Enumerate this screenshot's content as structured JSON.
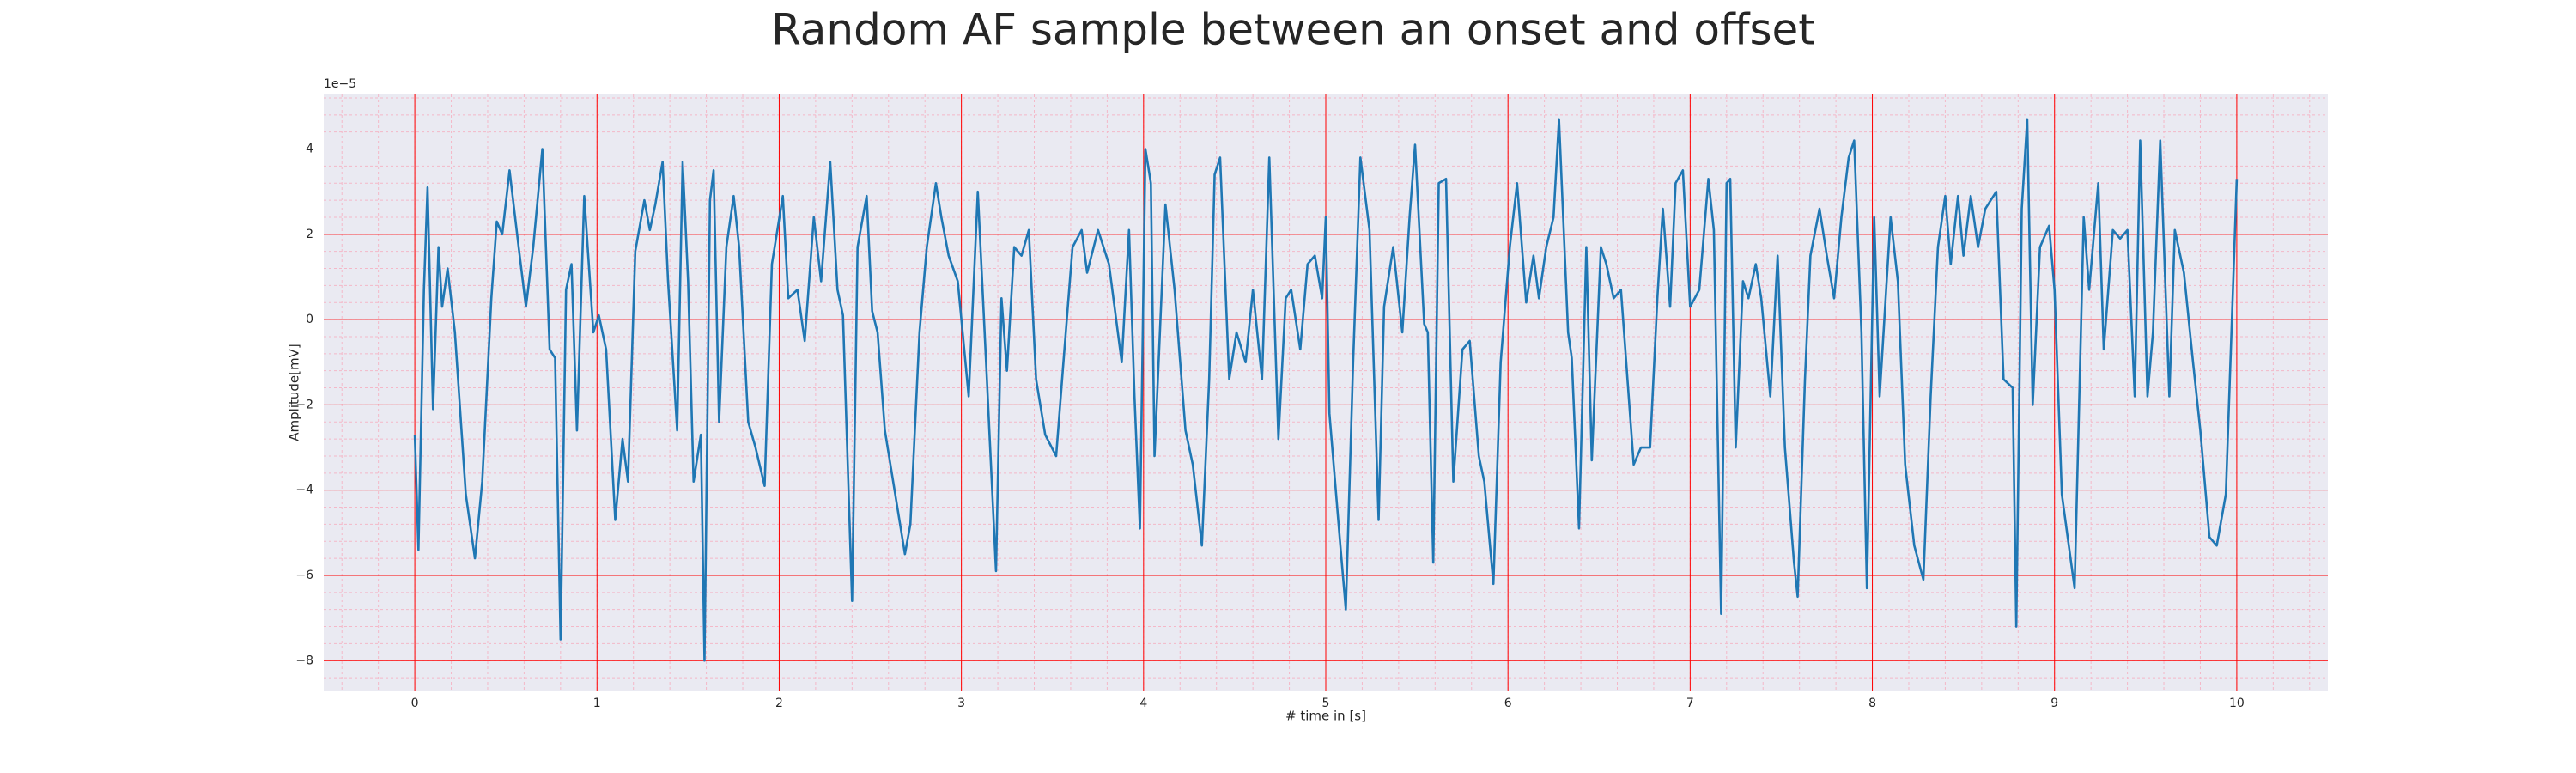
{
  "chart_data": {
    "type": "line",
    "title": "Random AF sample between an onset and offset",
    "xlabel": "# time in [s]",
    "ylabel": "Amplitude[mV]",
    "y_offset_label": "1e−5",
    "color": "#1f77b4",
    "grid": true,
    "grid_color": "#ff0000",
    "minor_grid": true,
    "xlim": [
      -0.5,
      10.5
    ],
    "ylim": [
      -8.7,
      5.28
    ],
    "xticks": [
      0,
      1,
      2,
      3,
      4,
      5,
      6,
      7,
      8,
      9,
      10
    ],
    "yticks": [
      {
        "value": -8,
        "label": "−8"
      },
      {
        "value": -6,
        "label": "−6"
      },
      {
        "value": -4,
        "label": "−4"
      },
      {
        "value": -2,
        "label": "−2"
      },
      0,
      2,
      4
    ],
    "x": [
      0,
      0.02,
      0.05,
      0.07,
      0.1,
      0.13,
      0.15,
      0.18,
      0.22,
      0.28,
      0.33,
      0.37,
      0.42,
      0.45,
      0.48,
      0.52,
      0.57,
      0.61,
      0.65,
      0.7,
      0.74,
      0.77,
      0.8,
      0.83,
      0.86,
      0.89,
      0.93,
      0.98,
      1.01,
      1.05,
      1.1,
      1.14,
      1.17,
      1.21,
      1.26,
      1.29,
      1.32,
      1.36,
      1.39,
      1.44,
      1.47,
      1.5,
      1.53,
      1.57,
      1.59,
      1.62,
      1.64,
      1.67,
      1.71,
      1.75,
      1.78,
      1.83,
      1.87,
      1.92,
      1.96,
      2.02,
      2.05,
      2.1,
      2.14,
      2.19,
      2.23,
      2.28,
      2.32,
      2.35,
      2.4,
      2.43,
      2.48,
      2.51,
      2.54,
      2.58,
      2.69,
      2.72,
      2.77,
      2.81,
      2.86,
      2.89,
      2.93,
      2.98,
      3.04,
      3.09,
      3.14,
      3.19,
      3.22,
      3.25,
      3.29,
      3.33,
      3.37,
      3.41,
      3.46,
      3.52,
      3.56,
      3.61,
      3.66,
      3.69,
      3.75,
      3.81,
      3.88,
      3.92,
      3.95,
      3.98,
      4.01,
      4.04,
      4.06,
      4.12,
      4.17,
      4.23,
      4.27,
      4.32,
      4.36,
      4.39,
      4.42,
      4.47,
      4.51,
      4.56,
      4.6,
      4.65,
      4.69,
      4.74,
      4.78,
      4.81,
      4.86,
      4.9,
      4.94,
      4.98,
      5.0,
      5.02,
      5.08,
      5.11,
      5.15,
      5.19,
      5.24,
      5.29,
      5.32,
      5.37,
      5.42,
      5.46,
      5.49,
      5.54,
      5.56,
      5.59,
      5.62,
      5.66,
      5.7,
      5.75,
      5.79,
      5.84,
      5.87,
      5.92,
      5.96,
      6.01,
      6.05,
      6.1,
      6.14,
      6.17,
      6.21,
      6.25,
      6.28,
      6.33,
      6.35,
      6.39,
      6.43,
      6.46,
      6.51,
      6.54,
      6.58,
      6.62,
      6.69,
      6.73,
      6.78,
      6.82,
      6.85,
      6.89,
      6.92,
      6.96,
      7.0,
      7.05,
      7.1,
      7.13,
      7.17,
      7.2,
      7.22,
      7.25,
      7.29,
      7.32,
      7.36,
      7.39,
      7.44,
      7.48,
      7.52,
      7.57,
      7.59,
      7.63,
      7.66,
      7.71,
      7.75,
      7.79,
      7.83,
      7.87,
      7.9,
      7.94,
      7.97,
      8.01,
      8.04,
      8.1,
      8.14,
      8.18,
      8.23,
      8.28,
      8.32,
      8.36,
      8.4,
      8.43,
      8.47,
      8.5,
      8.54,
      8.58,
      8.62,
      8.68,
      8.72,
      8.77,
      8.79,
      8.82,
      8.85,
      8.88,
      8.92,
      8.97,
      9.0,
      9.04,
      9.11,
      9.16,
      9.19,
      9.24,
      9.27,
      9.32,
      9.36,
      9.4,
      9.44,
      9.47,
      9.51,
      9.54,
      9.58,
      9.63,
      9.66,
      9.71,
      9.76,
      9.8,
      9.85,
      9.89,
      9.94,
      10.0
    ],
    "values": [
      -2.7,
      -5.4,
      0.7,
      3.1,
      -2.1,
      1.7,
      0.3,
      1.2,
      -0.3,
      -4.1,
      -5.6,
      -3.8,
      0.5,
      2.3,
      2.0,
      3.5,
      1.7,
      0.3,
      1.7,
      4.0,
      -0.7,
      -0.9,
      -7.5,
      0.7,
      1.3,
      -2.6,
      2.9,
      -0.3,
      0.1,
      -0.7,
      -4.7,
      -2.8,
      -3.8,
      1.6,
      2.8,
      2.1,
      2.7,
      3.7,
      0.9,
      -2.6,
      3.7,
      0.9,
      -3.8,
      -2.7,
      -8.0,
      2.8,
      3.5,
      -2.4,
      1.7,
      2.9,
      1.7,
      -2.4,
      -3.0,
      -3.9,
      1.3,
      2.9,
      0.5,
      0.7,
      -0.5,
      2.4,
      0.9,
      3.7,
      0.7,
      0.1,
      -6.6,
      1.7,
      2.9,
      0.2,
      -0.3,
      -2.6,
      -5.5,
      -4.8,
      -0.3,
      1.7,
      3.2,
      2.4,
      1.5,
      0.9,
      -1.8,
      3.0,
      -1.4,
      -5.9,
      0.5,
      -1.2,
      1.7,
      1.5,
      2.1,
      -1.4,
      -2.7,
      -3.2,
      -1.0,
      1.7,
      2.1,
      1.1,
      2.1,
      1.3,
      -1.0,
      2.1,
      -1.8,
      -4.9,
      4.0,
      3.2,
      -3.2,
      2.7,
      0.7,
      -2.6,
      -3.4,
      -5.3,
      -1.4,
      3.4,
      3.8,
      -1.4,
      -0.3,
      -1.0,
      0.7,
      -1.4,
      3.8,
      -2.8,
      0.5,
      0.7,
      -0.7,
      1.3,
      1.5,
      0.5,
      2.4,
      -2.2,
      -5.3,
      -6.8,
      -1.0,
      3.8,
      2.1,
      -4.7,
      0.3,
      1.7,
      -0.3,
      2.4,
      4.1,
      -0.1,
      -0.3,
      -5.7,
      3.2,
      3.3,
      -3.8,
      -0.7,
      -0.5,
      -3.2,
      -3.8,
      -6.2,
      -1.0,
      1.7,
      3.2,
      0.4,
      1.5,
      0.5,
      1.7,
      2.4,
      4.7,
      -0.3,
      -0.9,
      -4.9,
      1.7,
      -3.3,
      1.7,
      1.3,
      0.5,
      0.7,
      -3.4,
      -3.0,
      -3.0,
      0.5,
      2.6,
      0.3,
      3.2,
      3.5,
      0.3,
      0.7,
      3.3,
      2.1,
      -6.9,
      3.2,
      3.3,
      -3.0,
      0.9,
      0.5,
      1.3,
      0.5,
      -1.8,
      1.5,
      -3.0,
      -5.7,
      -6.5,
      -1.4,
      1.5,
      2.6,
      1.5,
      0.5,
      2.4,
      3.8,
      4.2,
      -0.3,
      -6.3,
      2.4,
      -1.8,
      2.4,
      0.9,
      -3.4,
      -5.3,
      -6.1,
      -1.8,
      1.7,
      2.9,
      1.3,
      2.9,
      1.5,
      2.9,
      1.7,
      2.6,
      3.0,
      -1.4,
      -1.6,
      -7.2,
      2.6,
      4.7,
      -2.0,
      1.7,
      2.2,
      0.7,
      -4.1,
      -6.3,
      2.4,
      0.7,
      3.2,
      -0.7,
      2.1,
      1.9,
      2.1,
      -1.8,
      4.2,
      -1.8,
      -0.3,
      4.2,
      -1.8,
      2.1,
      1.1,
      -1.0,
      -2.6,
      -5.1,
      -5.3,
      -4.1,
      3.3
    ]
  }
}
